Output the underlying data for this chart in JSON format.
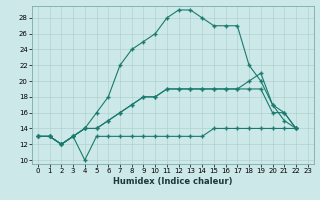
{
  "title": "",
  "xlabel": "Humidex (Indice chaleur)",
  "bg_color": "#cce8e8",
  "line_color": "#1a7a6e",
  "xlim": [
    -0.5,
    23.5
  ],
  "ylim": [
    9.5,
    29.5
  ],
  "yticks": [
    10,
    12,
    14,
    16,
    18,
    20,
    22,
    24,
    26,
    28
  ],
  "xticks": [
    0,
    1,
    2,
    3,
    4,
    5,
    6,
    7,
    8,
    9,
    10,
    11,
    12,
    13,
    14,
    15,
    16,
    17,
    18,
    19,
    20,
    21,
    22,
    23
  ],
  "series": [
    [
      13,
      13,
      12,
      13,
      14,
      16,
      18,
      22,
      24,
      25,
      26,
      28,
      29,
      29,
      28,
      27,
      27,
      27,
      22,
      20,
      17,
      15,
      14
    ],
    [
      13,
      13,
      12,
      13,
      10,
      13,
      13,
      13,
      13,
      13,
      13,
      13,
      13,
      13,
      13,
      14,
      14,
      14,
      14,
      14,
      14,
      14,
      14
    ],
    [
      13,
      13,
      12,
      13,
      14,
      14,
      15,
      16,
      17,
      18,
      18,
      19,
      19,
      19,
      19,
      19,
      19,
      19,
      19,
      19,
      16,
      16,
      14
    ],
    [
      13,
      13,
      12,
      13,
      14,
      14,
      15,
      16,
      17,
      18,
      18,
      19,
      19,
      19,
      19,
      19,
      19,
      19,
      20,
      21,
      17,
      16,
      14
    ]
  ]
}
